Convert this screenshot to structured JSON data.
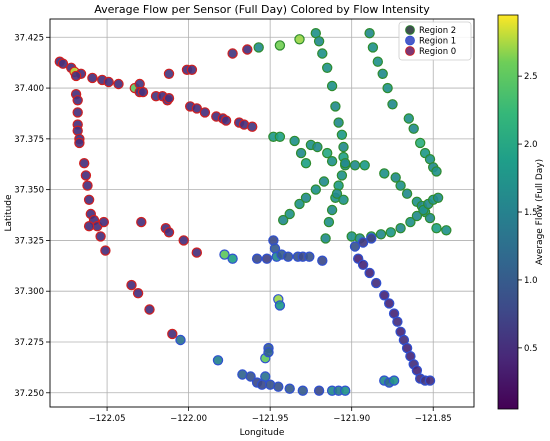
{
  "chart_data": {
    "type": "scatter",
    "title": "Average Flow per Sensor (Full Day) Colored by Flow Intensity",
    "xlabel": "Longitude",
    "ylabel": "Latitude",
    "xlim": [
      -122.085,
      -121.825
    ],
    "ylim": [
      37.243,
      37.434
    ],
    "xticks": [
      -122.05,
      -122.0,
      -121.95,
      -121.9,
      -121.85
    ],
    "xtick_labels": [
      "−122.05",
      "−122.00",
      "−121.95",
      "−121.90",
      "−121.85"
    ],
    "yticks": [
      37.25,
      37.275,
      37.3,
      37.325,
      37.35,
      37.375,
      37.4,
      37.425
    ],
    "ytick_labels": [
      "37.250",
      "37.275",
      "37.300",
      "37.325",
      "37.350",
      "37.375",
      "37.400",
      "37.425"
    ],
    "grid": true,
    "legend_position": "top-right",
    "colorbar": {
      "label": "Average Flow (Full Day)",
      "colormap": "viridis",
      "range": [
        0.05,
        2.95
      ],
      "ticks": [
        0.5,
        1.0,
        1.5,
        2.0,
        2.5
      ],
      "tick_labels": [
        "0.5",
        "1.0",
        "1.5",
        "2.0",
        "2.5"
      ]
    },
    "series": [
      {
        "name": "Region 2",
        "edge_color": "#2e8b2e",
        "legend_color": "#3f4f4f",
        "points": [
          [
            -121.957,
            37.42,
            1.6
          ],
          [
            -121.944,
            37.421,
            2.6
          ],
          [
            -121.932,
            37.424,
            2.7
          ],
          [
            -121.922,
            37.427,
            1.7
          ],
          [
            -121.92,
            37.423,
            1.6
          ],
          [
            -121.918,
            37.417,
            1.7
          ],
          [
            -121.915,
            37.41,
            1.7
          ],
          [
            -121.912,
            37.401,
            1.7
          ],
          [
            -121.91,
            37.391,
            1.6
          ],
          [
            -121.908,
            37.383,
            1.6
          ],
          [
            -121.906,
            37.377,
            1.8
          ],
          [
            -121.905,
            37.371,
            1.6
          ],
          [
            -121.905,
            37.366,
            1.9
          ],
          [
            -121.904,
            37.362,
            1.6
          ],
          [
            -121.906,
            37.357,
            1.7
          ],
          [
            -121.908,
            37.352,
            1.8
          ],
          [
            -121.91,
            37.346,
            1.7
          ],
          [
            -121.912,
            37.34,
            1.6
          ],
          [
            -121.914,
            37.334,
            1.7
          ],
          [
            -121.916,
            37.326,
            1.6
          ],
          [
            -121.889,
            37.427,
            1.6
          ],
          [
            -121.887,
            37.42,
            1.7
          ],
          [
            -121.884,
            37.413,
            1.7
          ],
          [
            -121.881,
            37.407,
            1.6
          ],
          [
            -121.878,
            37.4,
            1.7
          ],
          [
            -121.875,
            37.392,
            1.6
          ],
          [
            -121.865,
            37.385,
            1.7
          ],
          [
            -121.862,
            37.38,
            1.6
          ],
          [
            -121.858,
            37.373,
            2.1
          ],
          [
            -121.855,
            37.368,
            1.8
          ],
          [
            -121.852,
            37.365,
            1.7
          ],
          [
            -121.85,
            37.361,
            1.6
          ],
          [
            -121.848,
            37.359,
            1.7
          ],
          [
            -121.948,
            37.376,
            1.8
          ],
          [
            -121.944,
            37.376,
            1.9
          ],
          [
            -121.935,
            37.374,
            1.7
          ],
          [
            -121.931,
            37.368,
            1.6
          ],
          [
            -121.928,
            37.363,
            1.9
          ],
          [
            -121.925,
            37.372,
            1.7
          ],
          [
            -121.921,
            37.371,
            1.6
          ],
          [
            -121.915,
            37.368,
            2.0
          ],
          [
            -121.912,
            37.364,
            1.7
          ],
          [
            -121.904,
            37.363,
            1.6
          ],
          [
            -121.898,
            37.362,
            1.6
          ],
          [
            -121.892,
            37.362,
            1.8
          ],
          [
            -121.88,
            37.358,
            1.7
          ],
          [
            -121.873,
            37.356,
            1.6
          ],
          [
            -121.87,
            37.352,
            1.7
          ],
          [
            -121.866,
            37.348,
            1.6
          ],
          [
            -121.86,
            37.344,
            1.7
          ],
          [
            -121.857,
            37.342,
            1.6
          ],
          [
            -121.855,
            37.339,
            1.7
          ],
          [
            -121.852,
            37.336,
            1.6
          ],
          [
            -121.848,
            37.331,
            1.9
          ],
          [
            -121.842,
            37.33,
            1.7
          ],
          [
            -121.942,
            37.335,
            1.6
          ],
          [
            -121.938,
            37.338,
            1.7
          ],
          [
            -121.932,
            37.343,
            1.7
          ],
          [
            -121.928,
            37.346,
            1.6
          ],
          [
            -121.922,
            37.35,
            1.7
          ],
          [
            -121.917,
            37.354,
            1.6
          ],
          [
            -121.909,
            37.348,
            1.6
          ],
          [
            -121.905,
            37.345,
            1.7
          ],
          [
            -121.9,
            37.327,
            1.7
          ],
          [
            -121.895,
            37.326,
            1.6
          ],
          [
            -121.888,
            37.327,
            1.7
          ],
          [
            -121.882,
            37.328,
            1.6
          ],
          [
            -121.876,
            37.329,
            1.8
          ],
          [
            -121.87,
            37.331,
            1.6
          ],
          [
            -121.864,
            37.334,
            1.7
          ],
          [
            -121.86,
            37.337,
            1.6
          ],
          [
            -121.856,
            37.34,
            1.7
          ],
          [
            -121.853,
            37.343,
            1.6
          ],
          [
            -121.85,
            37.345,
            1.7
          ],
          [
            -121.847,
            37.346,
            1.6
          ]
        ]
      },
      {
        "name": "Region 1",
        "edge_color": "#3050d0",
        "legend_color": "#4a5bc8",
        "points": [
          [
            -121.978,
            37.318,
            2.5
          ],
          [
            -121.973,
            37.316,
            1.9
          ],
          [
            -121.958,
            37.316,
            0.8
          ],
          [
            -121.952,
            37.316,
            0.7
          ],
          [
            -121.948,
            37.325,
            0.8
          ],
          [
            -121.947,
            37.321,
            1.0
          ],
          [
            -121.946,
            37.317,
            1.6
          ],
          [
            -121.943,
            37.318,
            1.0
          ],
          [
            -121.939,
            37.317,
            0.9
          ],
          [
            -121.933,
            37.317,
            0.9
          ],
          [
            -121.93,
            37.317,
            0.8
          ],
          [
            -121.926,
            37.317,
            0.9
          ],
          [
            -121.918,
            37.315,
            0.8
          ],
          [
            -121.945,
            37.296,
            2.7
          ],
          [
            -121.944,
            37.293,
            1.8
          ],
          [
            -121.953,
            37.267,
            2.5
          ],
          [
            -121.951,
            37.272,
            1.0
          ],
          [
            -121.951,
            37.27,
            1.1
          ],
          [
            -121.982,
            37.266,
            1.5
          ],
          [
            -121.967,
            37.259,
            1.1
          ],
          [
            -121.962,
            37.258,
            0.9
          ],
          [
            -121.958,
            37.255,
            0.8
          ],
          [
            -121.955,
            37.254,
            0.8
          ],
          [
            -121.953,
            37.258,
            1.3
          ],
          [
            -121.95,
            37.254,
            0.9
          ],
          [
            -121.945,
            37.253,
            0.9
          ],
          [
            -121.938,
            37.252,
            1.0
          ],
          [
            -121.93,
            37.251,
            1.0
          ],
          [
            -121.92,
            37.251,
            0.8
          ],
          [
            -121.912,
            37.251,
            1.6
          ],
          [
            -121.908,
            37.251,
            1.4
          ],
          [
            -121.904,
            37.251,
            1.7
          ],
          [
            -122.005,
            37.276,
            1.3
          ],
          [
            -121.898,
            37.322,
            0.9
          ],
          [
            -121.893,
            37.324,
            0.6
          ],
          [
            -121.888,
            37.326,
            0.7
          ],
          [
            -121.896,
            37.316,
            0.4
          ],
          [
            -121.893,
            37.313,
            0.4
          ],
          [
            -121.889,
            37.309,
            0.4
          ],
          [
            -121.885,
            37.304,
            0.5
          ],
          [
            -121.88,
            37.298,
            0.4
          ],
          [
            -121.877,
            37.294,
            0.4
          ],
          [
            -121.874,
            37.289,
            0.4
          ],
          [
            -121.872,
            37.285,
            0.5
          ],
          [
            -121.87,
            37.28,
            0.4
          ],
          [
            -121.868,
            37.276,
            0.5
          ],
          [
            -121.866,
            37.272,
            0.4
          ],
          [
            -121.864,
            37.268,
            0.4
          ],
          [
            -121.862,
            37.264,
            0.5
          ],
          [
            -121.86,
            37.261,
            0.4
          ],
          [
            -121.858,
            37.257,
            0.5
          ],
          [
            -121.855,
            37.256,
            0.6
          ],
          [
            -121.852,
            37.256,
            0.5
          ],
          [
            -121.88,
            37.256,
            1.6
          ],
          [
            -121.877,
            37.255,
            1.2
          ],
          [
            -121.874,
            37.256,
            1.7
          ]
        ]
      },
      {
        "name": "Region 0",
        "edge_color": "#d02020",
        "legend_color": "#7d3572",
        "points": [
          [
            -122.079,
            37.413,
            0.5
          ],
          [
            -122.077,
            37.412,
            0.5
          ],
          [
            -122.072,
            37.41,
            0.5
          ],
          [
            -122.07,
            37.408,
            2.8
          ],
          [
            -122.066,
            37.407,
            0.5
          ],
          [
            -122.059,
            37.405,
            0.5
          ],
          [
            -122.053,
            37.404,
            0.5
          ],
          [
            -122.049,
            37.403,
            0.5
          ],
          [
            -122.043,
            37.402,
            0.5
          ],
          [
            -122.033,
            37.4,
            2.5
          ],
          [
            -122.03,
            37.402,
            0.6
          ],
          [
            -122.03,
            37.398,
            0.5
          ],
          [
            -122.028,
            37.398,
            0.5
          ],
          [
            -122.02,
            37.396,
            0.6
          ],
          [
            -122.016,
            37.396,
            0.5
          ],
          [
            -122.013,
            37.394,
            0.5
          ],
          [
            -122.012,
            37.395,
            0.5
          ],
          [
            -121.999,
            37.391,
            0.5
          ],
          [
            -121.995,
            37.39,
            0.5
          ],
          [
            -121.99,
            37.388,
            0.5
          ],
          [
            -121.983,
            37.386,
            0.5
          ],
          [
            -121.979,
            37.385,
            0.5
          ],
          [
            -121.977,
            37.384,
            0.5
          ],
          [
            -121.969,
            37.383,
            0.5
          ],
          [
            -121.966,
            37.382,
            0.5
          ],
          [
            -121.961,
            37.381,
            0.6
          ],
          [
            -122.012,
            37.407,
            0.6
          ],
          [
            -122.001,
            37.409,
            0.5
          ],
          [
            -121.998,
            37.409,
            0.5
          ],
          [
            -121.973,
            37.417,
            0.6
          ],
          [
            -121.964,
            37.419,
            0.5
          ],
          [
            -122.069,
            37.406,
            0.5
          ],
          [
            -122.069,
            37.397,
            0.5
          ],
          [
            -122.068,
            37.394,
            0.5
          ],
          [
            -122.068,
            37.388,
            0.5
          ],
          [
            -122.068,
            37.382,
            0.5
          ],
          [
            -122.068,
            37.379,
            0.5
          ],
          [
            -122.067,
            37.375,
            0.5
          ],
          [
            -122.067,
            37.373,
            0.5
          ],
          [
            -122.064,
            37.363,
            0.5
          ],
          [
            -122.063,
            37.357,
            0.5
          ],
          [
            -122.062,
            37.352,
            0.5
          ],
          [
            -122.061,
            37.345,
            0.5
          ],
          [
            -122.06,
            37.338,
            0.5
          ],
          [
            -122.058,
            37.335,
            0.5
          ],
          [
            -122.056,
            37.332,
            0.5
          ],
          [
            -122.061,
            37.332,
            0.5
          ],
          [
            -122.052,
            37.334,
            0.5
          ],
          [
            -122.054,
            37.327,
            0.5
          ],
          [
            -122.051,
            37.32,
            0.5
          ],
          [
            -122.029,
            37.334,
            0.5
          ],
          [
            -122.014,
            37.331,
            0.5
          ],
          [
            -122.012,
            37.329,
            0.5
          ],
          [
            -122.003,
            37.325,
            0.5
          ],
          [
            -121.995,
            37.319,
            0.5
          ],
          [
            -122.035,
            37.303,
            0.5
          ],
          [
            -122.031,
            37.299,
            0.5
          ],
          [
            -122.024,
            37.291,
            0.5
          ],
          [
            -122.01,
            37.279,
            0.5
          ]
        ]
      }
    ]
  }
}
